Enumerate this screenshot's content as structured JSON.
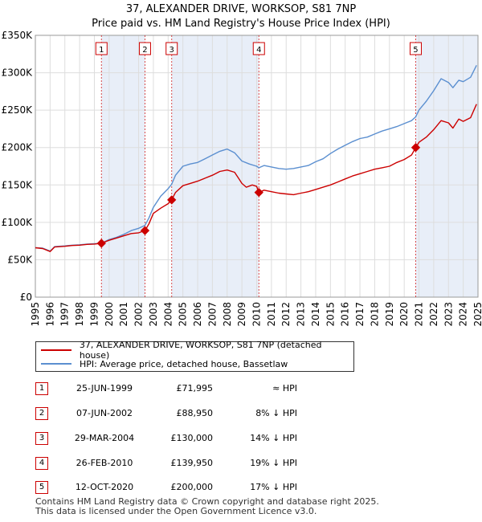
{
  "title_line1": "37, ALEXANDER DRIVE, WORKSOP, S81 7NP",
  "title_line2": "Price paid vs. HM Land Registry's House Price Index (HPI)",
  "legend": {
    "property": "37, ALEXANDER DRIVE, WORKSOP, S81 7NP (detached house)",
    "hpi": "HPI: Average price, detached house, Bassetlaw"
  },
  "sales": [
    {
      "n": "1",
      "date": "25-JUN-1999",
      "price": "£71,995",
      "rel": "≈ HPI"
    },
    {
      "n": "2",
      "date": "07-JUN-2002",
      "price": "£88,950",
      "rel": "8% ↓ HPI"
    },
    {
      "n": "3",
      "date": "29-MAR-2004",
      "price": "£130,000",
      "rel": "14% ↓ HPI"
    },
    {
      "n": "4",
      "date": "26-FEB-2010",
      "price": "£139,950",
      "rel": "19% ↓ HPI"
    },
    {
      "n": "5",
      "date": "12-OCT-2020",
      "price": "£200,000",
      "rel": "17% ↓ HPI"
    }
  ],
  "footer_line1": "Contains HM Land Registry data © Crown copyright and database right 2025.",
  "footer_line2": "This data is licensed under the Open Government Licence v3.0.",
  "colors": {
    "property": "#cc0000",
    "hpi": "#5b8fd0",
    "shade": "#e8eef8",
    "grid": "#dddddd"
  },
  "chart_data": {
    "type": "line",
    "xlim": [
      1995,
      2025
    ],
    "ylim": [
      0,
      350000
    ],
    "x_ticks": [
      "1995",
      "1996",
      "1997",
      "1998",
      "1999",
      "2000",
      "2001",
      "2002",
      "2003",
      "2004",
      "2005",
      "2006",
      "2007",
      "2008",
      "2009",
      "2010",
      "2011",
      "2012",
      "2013",
      "2014",
      "2015",
      "2016",
      "2017",
      "2018",
      "2019",
      "2020",
      "2021",
      "2022",
      "2023",
      "2024",
      "2025"
    ],
    "y_ticks": [
      {
        "v": 0,
        "label": "£0"
      },
      {
        "v": 50000,
        "label": "£50K"
      },
      {
        "v": 100000,
        "label": "£100K"
      },
      {
        "v": 150000,
        "label": "£150K"
      },
      {
        "v": 200000,
        "label": "£200K"
      },
      {
        "v": 250000,
        "label": "£250K"
      },
      {
        "v": 300000,
        "label": "£300K"
      },
      {
        "v": 350000,
        "label": "£350K"
      }
    ],
    "shaded_periods": [
      [
        1999.48,
        2002.43
      ],
      [
        2004.24,
        2010.15
      ],
      [
        2020.78,
        2025.0
      ]
    ],
    "sale_markers": [
      {
        "n": "1",
        "x": 1999.48,
        "y": 71995
      },
      {
        "n": "2",
        "x": 2002.43,
        "y": 88950
      },
      {
        "n": "3",
        "x": 2004.24,
        "y": 130000
      },
      {
        "n": "4",
        "x": 2010.15,
        "y": 139950
      },
      {
        "n": "5",
        "x": 2020.78,
        "y": 200000
      }
    ],
    "series": [
      {
        "name": "37, ALEXANDER DRIVE, WORKSOP, S81 7NP (detached house)",
        "points": [
          [
            1995.0,
            66000
          ],
          [
            1995.5,
            65000
          ],
          [
            1996.0,
            61000
          ],
          [
            1996.3,
            67000
          ],
          [
            1997.0,
            68000
          ],
          [
            1997.5,
            69000
          ],
          [
            1998.0,
            69500
          ],
          [
            1998.5,
            70500
          ],
          [
            1999.0,
            71000
          ],
          [
            1999.48,
            71995
          ],
          [
            2000.0,
            76000
          ],
          [
            2000.5,
            79000
          ],
          [
            2001.0,
            82000
          ],
          [
            2001.5,
            85000
          ],
          [
            2002.0,
            86000
          ],
          [
            2002.43,
            88950
          ],
          [
            2002.7,
            98000
          ],
          [
            2003.0,
            112000
          ],
          [
            2003.5,
            119000
          ],
          [
            2004.0,
            125000
          ],
          [
            2004.24,
            130000
          ],
          [
            2004.5,
            140000
          ],
          [
            2005.0,
            149000
          ],
          [
            2005.5,
            152000
          ],
          [
            2006.0,
            155000
          ],
          [
            2006.5,
            159000
          ],
          [
            2007.0,
            163000
          ],
          [
            2007.5,
            168000
          ],
          [
            2008.0,
            170000
          ],
          [
            2008.5,
            167000
          ],
          [
            2008.8,
            158000
          ],
          [
            2009.0,
            152000
          ],
          [
            2009.3,
            147000
          ],
          [
            2009.7,
            150000
          ],
          [
            2010.0,
            148000
          ],
          [
            2010.15,
            139950
          ],
          [
            2010.5,
            143000
          ],
          [
            2011.0,
            141000
          ],
          [
            2011.5,
            139000
          ],
          [
            2012.0,
            138000
          ],
          [
            2012.5,
            137000
          ],
          [
            2013.0,
            139000
          ],
          [
            2013.5,
            141000
          ],
          [
            2014.0,
            144000
          ],
          [
            2014.5,
            147000
          ],
          [
            2015.0,
            150000
          ],
          [
            2015.5,
            154000
          ],
          [
            2016.0,
            158000
          ],
          [
            2016.5,
            162000
          ],
          [
            2017.0,
            165000
          ],
          [
            2017.5,
            168000
          ],
          [
            2018.0,
            171000
          ],
          [
            2018.5,
            173000
          ],
          [
            2019.0,
            175000
          ],
          [
            2019.5,
            180000
          ],
          [
            2020.0,
            184000
          ],
          [
            2020.5,
            190000
          ],
          [
            2020.78,
            200000
          ],
          [
            2021.0,
            207000
          ],
          [
            2021.5,
            214000
          ],
          [
            2022.0,
            224000
          ],
          [
            2022.5,
            236000
          ],
          [
            2023.0,
            233000
          ],
          [
            2023.3,
            226000
          ],
          [
            2023.7,
            238000
          ],
          [
            2024.0,
            235000
          ],
          [
            2024.5,
            240000
          ],
          [
            2024.9,
            258000
          ]
        ]
      },
      {
        "name": "HPI: Average price, detached house, Bassetlaw",
        "points": [
          [
            1995.0,
            66000
          ],
          [
            1995.5,
            65500
          ],
          [
            1996.0,
            61500
          ],
          [
            1996.3,
            67500
          ],
          [
            1997.0,
            68500
          ],
          [
            1997.5,
            69500
          ],
          [
            1998.0,
            70000
          ],
          [
            1998.5,
            71000
          ],
          [
            1999.0,
            71500
          ],
          [
            1999.48,
            72000
          ],
          [
            2000.0,
            77000
          ],
          [
            2000.5,
            80000
          ],
          [
            2001.0,
            84000
          ],
          [
            2001.5,
            89000
          ],
          [
            2002.0,
            92000
          ],
          [
            2002.43,
            96000
          ],
          [
            2002.7,
            106000
          ],
          [
            2003.0,
            120000
          ],
          [
            2003.5,
            135000
          ],
          [
            2004.0,
            145000
          ],
          [
            2004.24,
            151000
          ],
          [
            2004.5,
            163000
          ],
          [
            2005.0,
            175000
          ],
          [
            2005.5,
            178000
          ],
          [
            2006.0,
            180000
          ],
          [
            2006.5,
            185000
          ],
          [
            2007.0,
            190000
          ],
          [
            2007.5,
            195000
          ],
          [
            2008.0,
            198000
          ],
          [
            2008.5,
            193000
          ],
          [
            2009.0,
            182000
          ],
          [
            2009.5,
            178000
          ],
          [
            2010.0,
            175000
          ],
          [
            2010.15,
            173000
          ],
          [
            2010.5,
            176000
          ],
          [
            2011.0,
            174000
          ],
          [
            2011.5,
            172000
          ],
          [
            2012.0,
            171000
          ],
          [
            2012.5,
            172000
          ],
          [
            2013.0,
            174000
          ],
          [
            2013.5,
            176000
          ],
          [
            2014.0,
            181000
          ],
          [
            2014.5,
            185000
          ],
          [
            2015.0,
            192000
          ],
          [
            2015.5,
            198000
          ],
          [
            2016.0,
            203000
          ],
          [
            2016.5,
            208000
          ],
          [
            2017.0,
            212000
          ],
          [
            2017.5,
            214000
          ],
          [
            2018.0,
            218000
          ],
          [
            2018.5,
            222000
          ],
          [
            2019.0,
            225000
          ],
          [
            2019.5,
            228000
          ],
          [
            2020.0,
            232000
          ],
          [
            2020.5,
            236000
          ],
          [
            2020.78,
            241000
          ],
          [
            2021.0,
            250000
          ],
          [
            2021.5,
            262000
          ],
          [
            2022.0,
            276000
          ],
          [
            2022.5,
            292000
          ],
          [
            2023.0,
            287000
          ],
          [
            2023.3,
            280000
          ],
          [
            2023.7,
            290000
          ],
          [
            2024.0,
            288000
          ],
          [
            2024.5,
            294000
          ],
          [
            2024.9,
            310000
          ]
        ]
      }
    ]
  }
}
